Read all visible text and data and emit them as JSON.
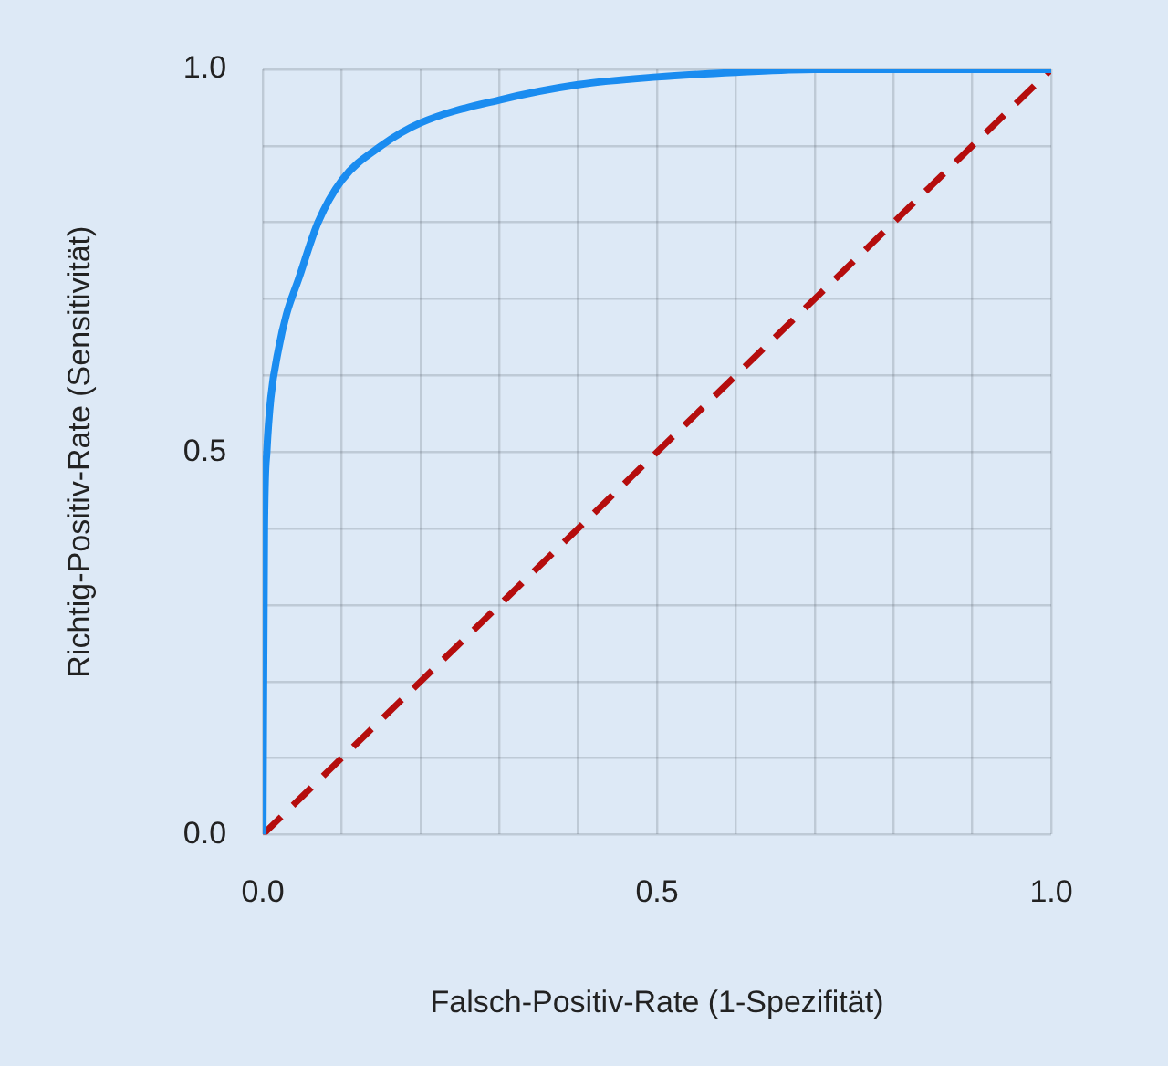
{
  "chart_data": {
    "type": "line",
    "xlabel": "Falsch-Positiv-Rate (1-Spezifität)",
    "ylabel": "Richtig-Positiv-Rate (Sensitivität)",
    "xlim": [
      0,
      1
    ],
    "ylim": [
      0,
      1
    ],
    "xticks": [
      {
        "value": 0,
        "label": "0.0"
      },
      {
        "value": 0.1,
        "label": null
      },
      {
        "value": 0.2,
        "label": null
      },
      {
        "value": 0.3,
        "label": null
      },
      {
        "value": 0.4,
        "label": null
      },
      0.5,
      {
        "value": 0.6,
        "label": null
      },
      {
        "value": 0.7,
        "label": null
      },
      {
        "value": 0.8,
        "label": null
      },
      {
        "value": 0.9,
        "label": null
      },
      {
        "value": 1,
        "label": "1.0"
      }
    ],
    "yticks": [
      {
        "value": 0,
        "label": "0.0"
      },
      {
        "value": 0.1,
        "label": null
      },
      {
        "value": 0.2,
        "label": null
      },
      {
        "value": 0.3,
        "label": null
      },
      {
        "value": 0.4,
        "label": null
      },
      0.5,
      {
        "value": 0.6,
        "label": null
      },
      {
        "value": 0.7,
        "label": null
      },
      {
        "value": 0.8,
        "label": null
      },
      {
        "value": 0.9,
        "label": null
      },
      {
        "value": 1,
        "label": "1.0"
      }
    ],
    "grid": true,
    "legend": false,
    "marker": "none",
    "series": [
      {
        "color": "#1a8cf0",
        "line_style": "solid",
        "x": [
          0,
          0.002,
          0.005,
          0.01,
          0.02,
          0.03,
          0.045,
          0.07,
          0.1,
          0.15,
          0.2,
          0.3,
          0.4,
          0.5,
          0.6,
          0.7,
          1
        ],
        "values": [
          0,
          0.4,
          0.5,
          0.57,
          0.635,
          0.68,
          0.725,
          0.8,
          0.855,
          0.9,
          0.93,
          0.96,
          0.98,
          0.99,
          0.996,
          1,
          1
        ]
      },
      {
        "color": "#b50d0d",
        "line_style": "dashed",
        "x": [
          0,
          1
        ],
        "values": [
          0,
          1
        ]
      }
    ]
  }
}
